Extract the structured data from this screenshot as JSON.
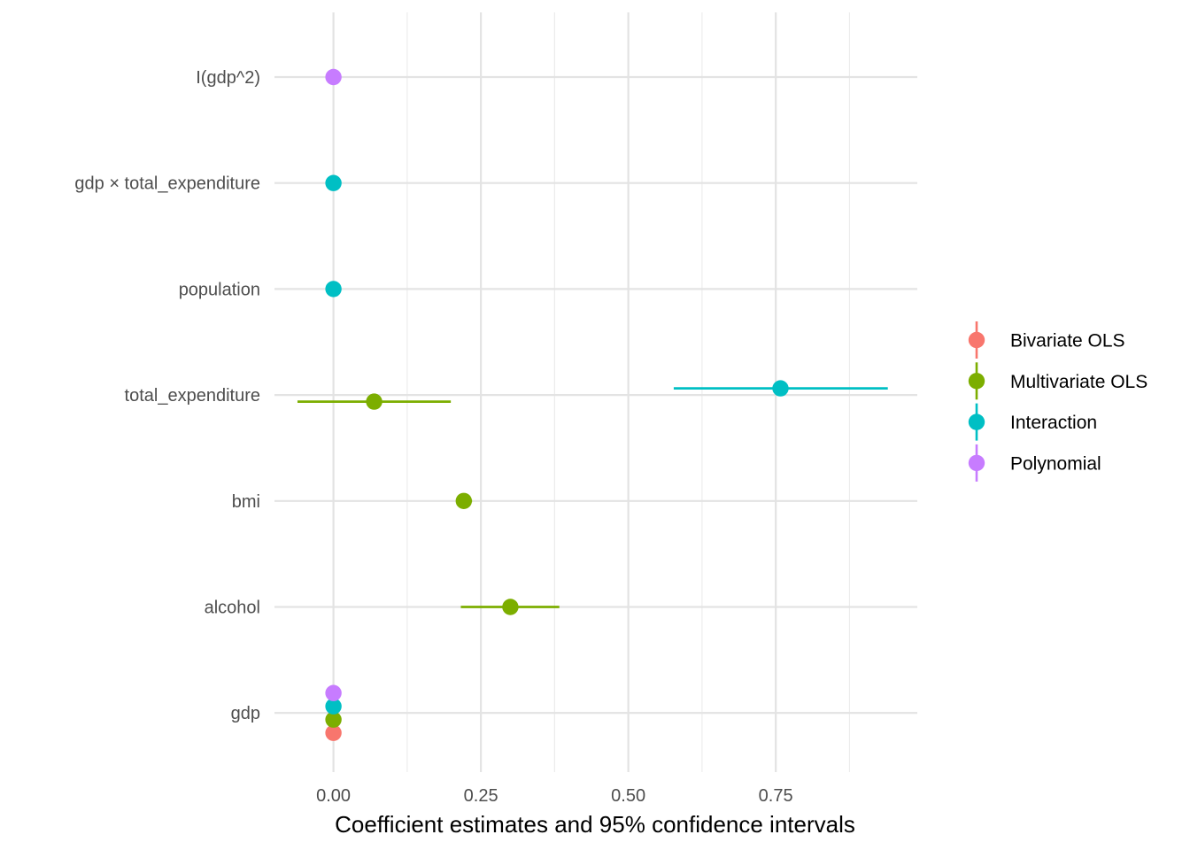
{
  "chart_data": {
    "type": "scatter",
    "subtype": "coefficient-plot-with-horizontal-error-bars",
    "title": "",
    "xlabel": "Coefficient estimates and 95% confidence intervals",
    "ylabel": "",
    "xlim": [
      -0.1,
      0.99
    ],
    "x_ticks": [
      0.0,
      0.25,
      0.5,
      0.75
    ],
    "x_tick_labels": [
      "0.00",
      "0.25",
      "0.50",
      "0.75"
    ],
    "categories": [
      "gdp",
      "alcohol",
      "bmi",
      "total_expenditure",
      "population",
      "gdp × total_expenditure",
      "I(gdp^2)"
    ],
    "grid": true,
    "legend_position": "right",
    "series": [
      {
        "name": "Bivariate OLS",
        "color": "#F8766D",
        "points": [
          {
            "term": "gdp",
            "estimate": 0.0,
            "low": 0.0,
            "high": 0.0
          }
        ]
      },
      {
        "name": "Multivariate OLS",
        "color": "#7CAE00",
        "points": [
          {
            "term": "gdp",
            "estimate": 0.0,
            "low": 0.0,
            "high": 0.0
          },
          {
            "term": "alcohol",
            "estimate": 0.3,
            "low": 0.216,
            "high": 0.383
          },
          {
            "term": "bmi",
            "estimate": 0.221,
            "low": 0.208,
            "high": 0.235
          },
          {
            "term": "total_expenditure",
            "estimate": 0.069,
            "low": -0.061,
            "high": 0.199
          }
        ]
      },
      {
        "name": "Interaction",
        "color": "#00BFC4",
        "points": [
          {
            "term": "gdp",
            "estimate": 0.0,
            "low": 0.0,
            "high": 0.0
          },
          {
            "term": "total_expenditure",
            "estimate": 0.758,
            "low": 0.577,
            "high": 0.94
          },
          {
            "term": "population",
            "estimate": 0.0,
            "low": 0.0,
            "high": 0.0
          },
          {
            "term": "gdp × total_expenditure",
            "estimate": 0.0,
            "low": 0.0,
            "high": 0.0
          }
        ]
      },
      {
        "name": "Polynomial",
        "color": "#C77CFF",
        "points": [
          {
            "term": "gdp",
            "estimate": 0.0,
            "low": 0.0,
            "high": 0.0
          },
          {
            "term": "I(gdp^2)",
            "estimate": 0.0,
            "low": 0.0,
            "high": 0.0
          }
        ]
      }
    ]
  }
}
